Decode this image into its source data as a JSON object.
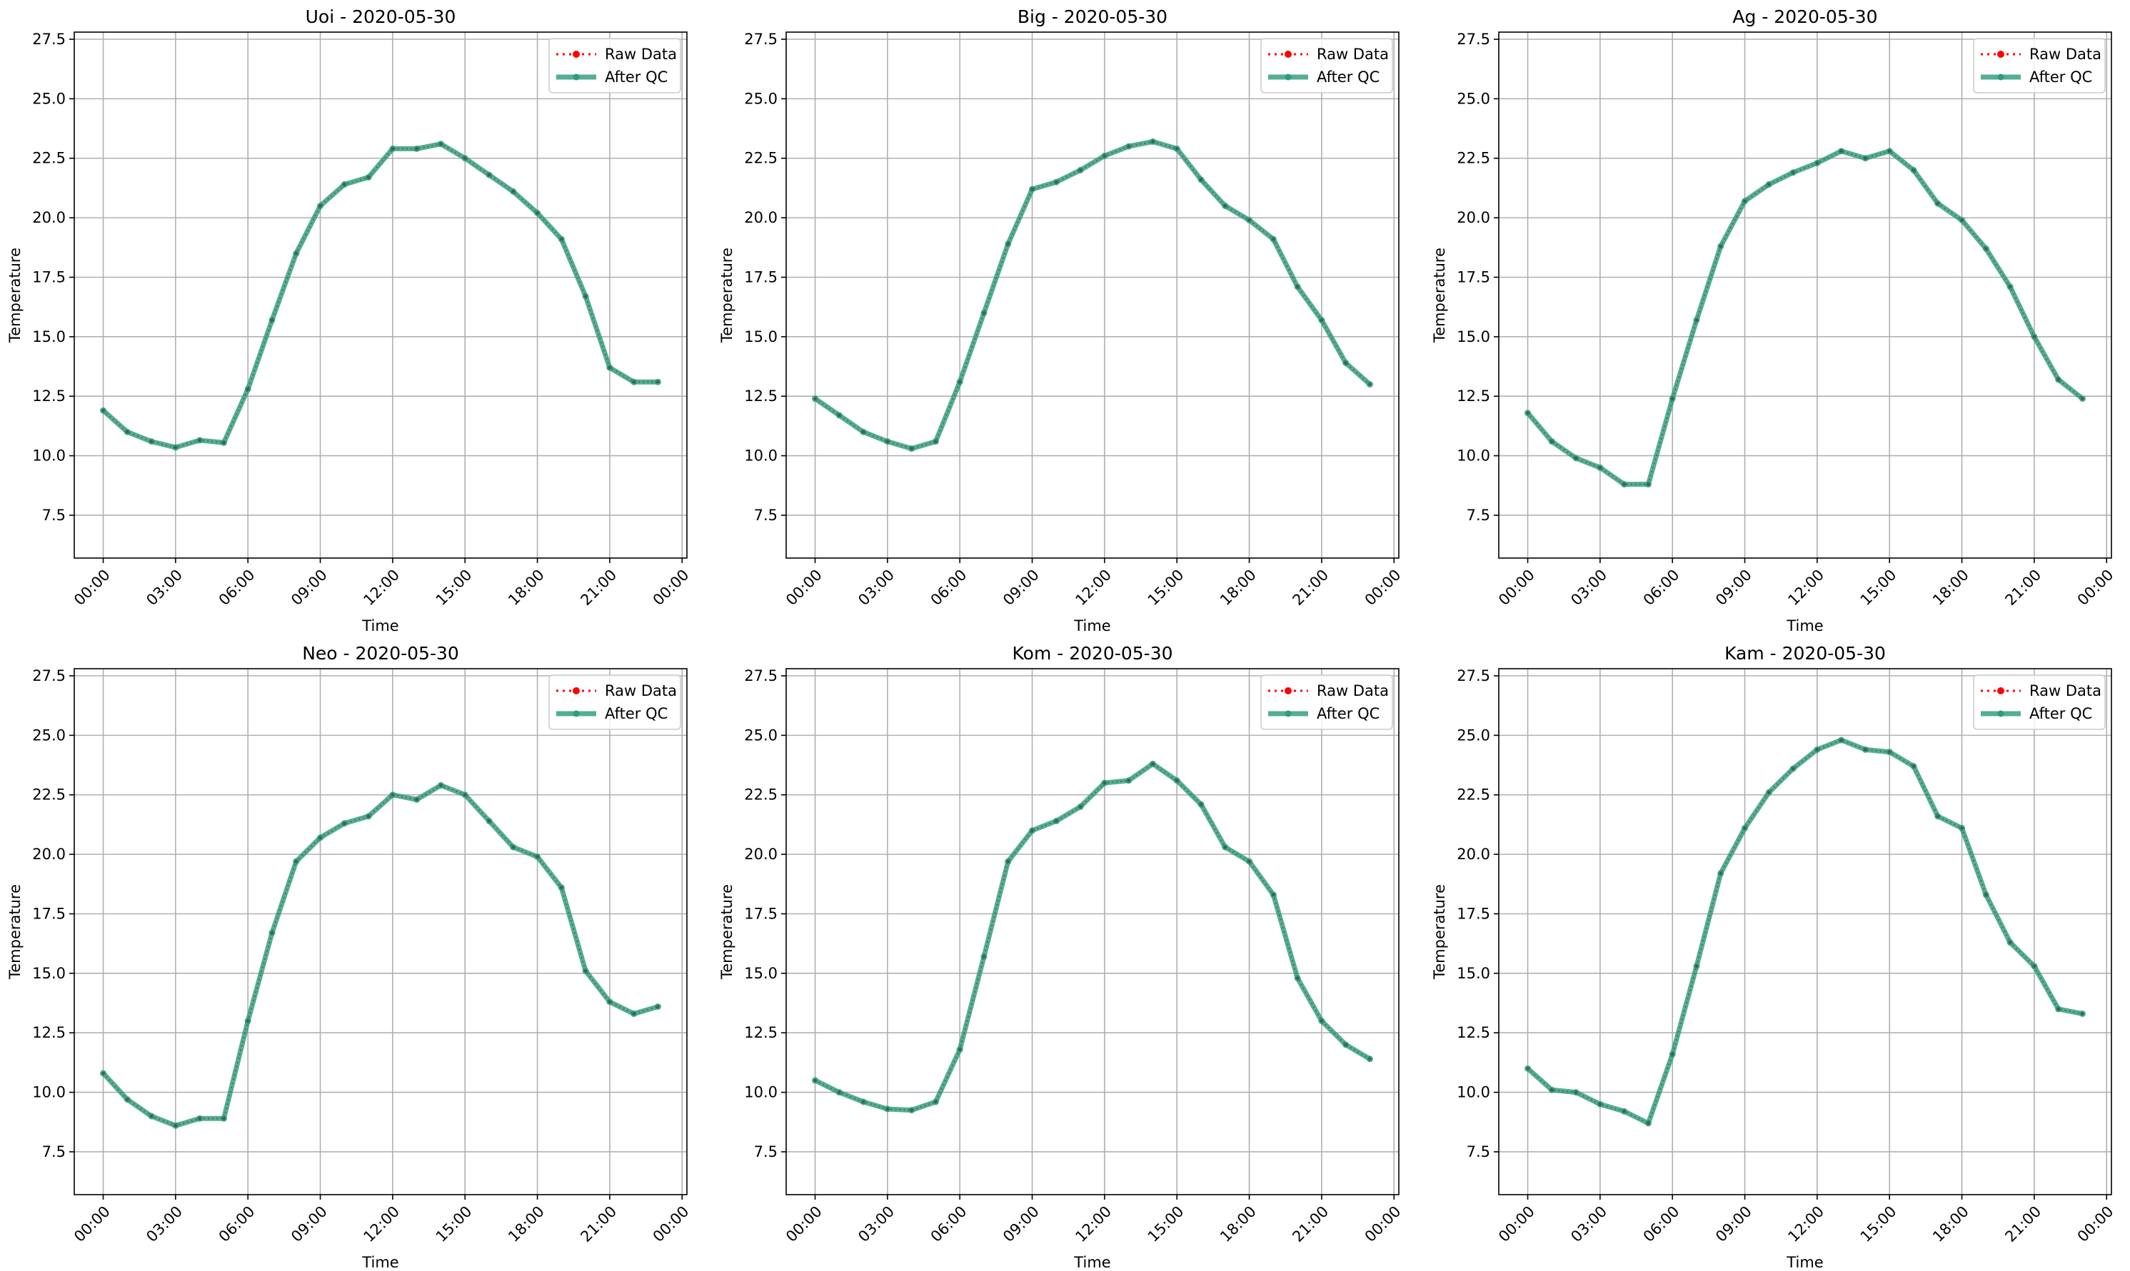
{
  "chart_data": [
    {
      "type": "line",
      "title": "Uoi - 2020-05-30",
      "xlabel": "Time",
      "ylabel": "Temperature",
      "xticks": [
        "00:00",
        "03:00",
        "06:00",
        "09:00",
        "12:00",
        "15:00",
        "18:00",
        "21:00",
        "00:00"
      ],
      "yticks": [
        "7.5",
        "10.0",
        "12.5",
        "15.0",
        "17.5",
        "20.0",
        "22.5",
        "25.0",
        "27.5"
      ],
      "xlim_hours": [
        -1.2,
        24.2
      ],
      "ylim": [
        5.7,
        27.8
      ],
      "grid": true,
      "legend_position": "top-right",
      "x_hours": [
        0,
        1,
        2,
        3,
        4,
        5,
        6,
        7,
        8,
        9,
        10,
        11,
        12,
        13,
        14,
        15,
        16,
        17,
        18,
        19,
        20,
        21,
        22,
        23
      ],
      "series": [
        {
          "name": "Raw Data",
          "color": "#ff0000",
          "values": [
            11.9,
            11.0,
            10.6,
            10.35,
            10.65,
            10.55,
            12.8,
            15.7,
            18.5,
            20.5,
            21.4,
            21.7,
            22.9,
            22.9,
            23.1,
            22.5,
            21.8,
            21.1,
            20.2,
            19.1,
            16.7,
            13.7,
            13.1,
            13.1
          ]
        },
        {
          "name": "After QC",
          "color": "#2e9c7c",
          "values": [
            11.9,
            11.0,
            10.6,
            10.35,
            10.65,
            10.55,
            12.8,
            15.7,
            18.5,
            20.5,
            21.4,
            21.7,
            22.9,
            22.9,
            23.1,
            22.5,
            21.8,
            21.1,
            20.2,
            19.1,
            16.7,
            13.7,
            13.1,
            13.1
          ]
        }
      ]
    },
    {
      "type": "line",
      "title": "Big - 2020-05-30",
      "xlabel": "Time",
      "ylabel": "Temperature",
      "xticks": [
        "00:00",
        "03:00",
        "06:00",
        "09:00",
        "12:00",
        "15:00",
        "18:00",
        "21:00",
        "00:00"
      ],
      "yticks": [
        "7.5",
        "10.0",
        "12.5",
        "15.0",
        "17.5",
        "20.0",
        "22.5",
        "25.0",
        "27.5"
      ],
      "xlim_hours": [
        -1.2,
        24.2
      ],
      "ylim": [
        5.7,
        27.8
      ],
      "grid": true,
      "legend_position": "top-right",
      "x_hours": [
        0,
        1,
        2,
        3,
        4,
        5,
        6,
        7,
        8,
        9,
        10,
        11,
        12,
        13,
        14,
        15,
        16,
        17,
        18,
        19,
        20,
        21,
        22,
        23
      ],
      "series": [
        {
          "name": "Raw Data",
          "color": "#ff0000",
          "values": [
            12.4,
            11.7,
            11.0,
            10.6,
            10.3,
            10.6,
            13.1,
            16.0,
            18.9,
            21.2,
            21.5,
            22.0,
            22.6,
            23.0,
            23.2,
            22.9,
            21.6,
            20.5,
            19.9,
            19.1,
            17.1,
            15.7,
            13.9,
            13.0
          ]
        },
        {
          "name": "After QC",
          "color": "#2e9c7c",
          "values": [
            12.4,
            11.7,
            11.0,
            10.6,
            10.3,
            10.6,
            13.1,
            16.0,
            18.9,
            21.2,
            21.5,
            22.0,
            22.6,
            23.0,
            23.2,
            22.9,
            21.6,
            20.5,
            19.9,
            19.1,
            17.1,
            15.7,
            13.9,
            13.0
          ]
        }
      ]
    },
    {
      "type": "line",
      "title": "Ag - 2020-05-30",
      "xlabel": "Time",
      "ylabel": "Temperature",
      "xticks": [
        "00:00",
        "03:00",
        "06:00",
        "09:00",
        "12:00",
        "15:00",
        "18:00",
        "21:00",
        "00:00"
      ],
      "yticks": [
        "7.5",
        "10.0",
        "12.5",
        "15.0",
        "17.5",
        "20.0",
        "22.5",
        "25.0",
        "27.5"
      ],
      "xlim_hours": [
        -1.2,
        24.2
      ],
      "ylim": [
        5.7,
        27.8
      ],
      "grid": true,
      "legend_position": "top-right",
      "x_hours": [
        0,
        1,
        2,
        3,
        4,
        5,
        6,
        7,
        8,
        9,
        10,
        11,
        12,
        13,
        14,
        15,
        16,
        17,
        18,
        19,
        20,
        21,
        22,
        23
      ],
      "series": [
        {
          "name": "Raw Data",
          "color": "#ff0000",
          "values": [
            11.8,
            10.6,
            9.9,
            9.5,
            8.8,
            8.8,
            12.4,
            15.7,
            18.8,
            20.7,
            21.4,
            21.9,
            22.3,
            22.8,
            22.5,
            22.8,
            22.0,
            20.6,
            19.9,
            18.7,
            17.1,
            15.0,
            13.2,
            12.4
          ]
        },
        {
          "name": "After QC",
          "color": "#2e9c7c",
          "values": [
            11.8,
            10.6,
            9.9,
            9.5,
            8.8,
            8.8,
            12.4,
            15.7,
            18.8,
            20.7,
            21.4,
            21.9,
            22.3,
            22.8,
            22.5,
            22.8,
            22.0,
            20.6,
            19.9,
            18.7,
            17.1,
            15.0,
            13.2,
            12.4
          ]
        }
      ]
    },
    {
      "type": "line",
      "title": "Neo - 2020-05-30",
      "xlabel": "Time",
      "ylabel": "Temperature",
      "xticks": [
        "00:00",
        "03:00",
        "06:00",
        "09:00",
        "12:00",
        "15:00",
        "18:00",
        "21:00",
        "00:00"
      ],
      "yticks": [
        "7.5",
        "10.0",
        "12.5",
        "15.0",
        "17.5",
        "20.0",
        "22.5",
        "25.0",
        "27.5"
      ],
      "xlim_hours": [
        -1.2,
        24.2
      ],
      "ylim": [
        5.7,
        27.8
      ],
      "grid": true,
      "legend_position": "top-right",
      "x_hours": [
        0,
        1,
        2,
        3,
        4,
        5,
        6,
        7,
        8,
        9,
        10,
        11,
        12,
        13,
        14,
        15,
        16,
        17,
        18,
        19,
        20,
        21,
        22,
        23
      ],
      "series": [
        {
          "name": "Raw Data",
          "color": "#ff0000",
          "values": [
            10.8,
            9.7,
            9.0,
            8.6,
            8.9,
            8.9,
            13.0,
            16.7,
            19.7,
            20.7,
            21.3,
            21.6,
            22.5,
            22.3,
            22.9,
            22.5,
            21.4,
            20.3,
            19.9,
            18.6,
            15.1,
            13.8,
            13.3,
            13.6
          ]
        },
        {
          "name": "After QC",
          "color": "#2e9c7c",
          "values": [
            10.8,
            9.7,
            9.0,
            8.6,
            8.9,
            8.9,
            13.0,
            16.7,
            19.7,
            20.7,
            21.3,
            21.6,
            22.5,
            22.3,
            22.9,
            22.5,
            21.4,
            20.3,
            19.9,
            18.6,
            15.1,
            13.8,
            13.3,
            13.6
          ]
        }
      ]
    },
    {
      "type": "line",
      "title": "Kom - 2020-05-30",
      "xlabel": "Time",
      "ylabel": "Temperature",
      "xticks": [
        "00:00",
        "03:00",
        "06:00",
        "09:00",
        "12:00",
        "15:00",
        "18:00",
        "21:00",
        "00:00"
      ],
      "yticks": [
        "7.5",
        "10.0",
        "12.5",
        "15.0",
        "17.5",
        "20.0",
        "22.5",
        "25.0",
        "27.5"
      ],
      "xlim_hours": [
        -1.2,
        24.2
      ],
      "ylim": [
        5.7,
        27.8
      ],
      "grid": true,
      "legend_position": "top-right",
      "x_hours": [
        0,
        1,
        2,
        3,
        4,
        5,
        6,
        7,
        8,
        9,
        10,
        11,
        12,
        13,
        14,
        15,
        16,
        17,
        18,
        19,
        20,
        21,
        22,
        23
      ],
      "series": [
        {
          "name": "Raw Data",
          "color": "#ff0000",
          "values": [
            10.5,
            10.0,
            9.6,
            9.3,
            9.25,
            9.6,
            11.8,
            15.7,
            19.7,
            21.0,
            21.4,
            22.0,
            23.0,
            23.1,
            23.8,
            23.1,
            22.1,
            20.3,
            19.7,
            18.3,
            14.8,
            13.0,
            12.0,
            11.4
          ]
        },
        {
          "name": "After QC",
          "color": "#2e9c7c",
          "values": [
            10.5,
            10.0,
            9.6,
            9.3,
            9.25,
            9.6,
            11.8,
            15.7,
            19.7,
            21.0,
            21.4,
            22.0,
            23.0,
            23.1,
            23.8,
            23.1,
            22.1,
            20.3,
            19.7,
            18.3,
            14.8,
            13.0,
            12.0,
            11.4
          ]
        }
      ]
    },
    {
      "type": "line",
      "title": "Kam - 2020-05-30",
      "xlabel": "Time",
      "ylabel": "Temperature",
      "xticks": [
        "00:00",
        "03:00",
        "06:00",
        "09:00",
        "12:00",
        "15:00",
        "18:00",
        "21:00",
        "00:00"
      ],
      "yticks": [
        "7.5",
        "10.0",
        "12.5",
        "15.0",
        "17.5",
        "20.0",
        "22.5",
        "25.0",
        "27.5"
      ],
      "xlim_hours": [
        -1.2,
        24.2
      ],
      "ylim": [
        5.7,
        27.8
      ],
      "grid": true,
      "legend_position": "top-right",
      "x_hours": [
        0,
        1,
        2,
        3,
        4,
        5,
        6,
        7,
        8,
        9,
        10,
        11,
        12,
        13,
        14,
        15,
        16,
        17,
        18,
        19,
        20,
        21,
        22,
        23
      ],
      "series": [
        {
          "name": "Raw Data",
          "color": "#ff0000",
          "values": [
            11.0,
            10.1,
            10.0,
            9.5,
            9.2,
            8.7,
            11.6,
            15.3,
            19.2,
            21.1,
            22.6,
            23.6,
            24.4,
            24.8,
            24.4,
            24.3,
            23.7,
            21.6,
            21.1,
            18.3,
            16.3,
            15.3,
            13.5,
            13.3
          ]
        },
        {
          "name": "After QC",
          "color": "#2e9c7c",
          "values": [
            11.0,
            10.1,
            10.0,
            9.5,
            9.2,
            8.7,
            11.6,
            15.3,
            19.2,
            21.1,
            22.6,
            23.6,
            24.4,
            24.8,
            24.4,
            24.3,
            23.7,
            21.6,
            21.1,
            18.3,
            16.3,
            15.3,
            13.5,
            13.3
          ]
        }
      ]
    }
  ]
}
